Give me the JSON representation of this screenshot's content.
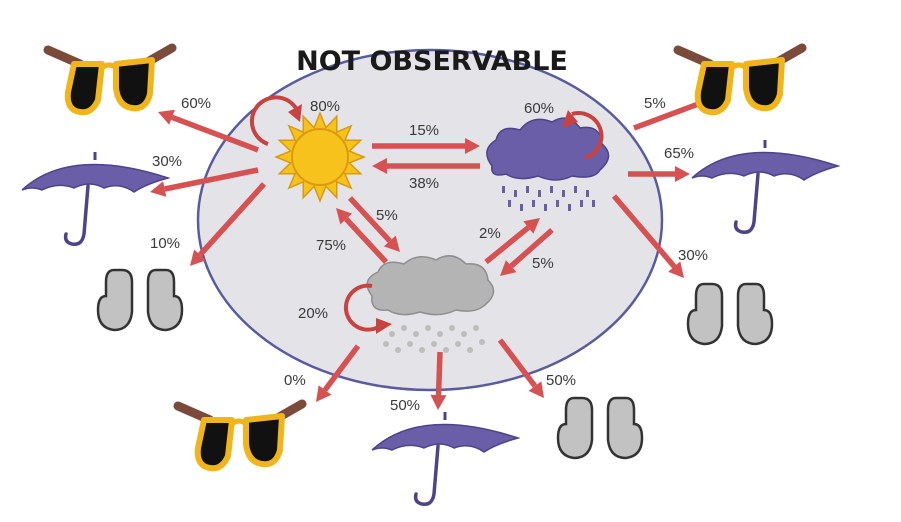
{
  "title": "NOT OBSERVABLE",
  "colors": {
    "arrow": "#d65252",
    "ellipse_fill": "#e4e4e8",
    "ellipse_stroke": "#5a5aa0",
    "umbrella": "#6a5ea8",
    "sun": "#f7c21b",
    "rain_cloud": "#6a5ea8",
    "snow_cloud": "#b4b4b4",
    "mitten": "#c2c2c2",
    "glasses_frame": "#f0b51a"
  },
  "icons": [
    "sun-icon",
    "rain-cloud-icon",
    "snow-cloud-icon",
    "sunglasses-icon",
    "umbrella-icon",
    "mittens-icon"
  ],
  "transitions": {
    "sunny_self": "80%",
    "sunny_to_rainy": "15%",
    "rainy_to_sunny": "38%",
    "sunny_to_snowy": "5%",
    "snowy_to_sunny": "75%",
    "rainy_self": "60%",
    "snowy_to_rainy": "2%",
    "rainy_to_snowy": "5%",
    "snowy_self": "20%"
  },
  "emissions": {
    "sunny": {
      "sunglasses": "60%",
      "umbrella": "30%",
      "mittens": "10%"
    },
    "rainy": {
      "sunglasses": "5%",
      "umbrella": "65%",
      "mittens": "30%"
    },
    "snowy": {
      "sunglasses": "0%",
      "umbrella": "50%",
      "mittens": "50%"
    }
  }
}
